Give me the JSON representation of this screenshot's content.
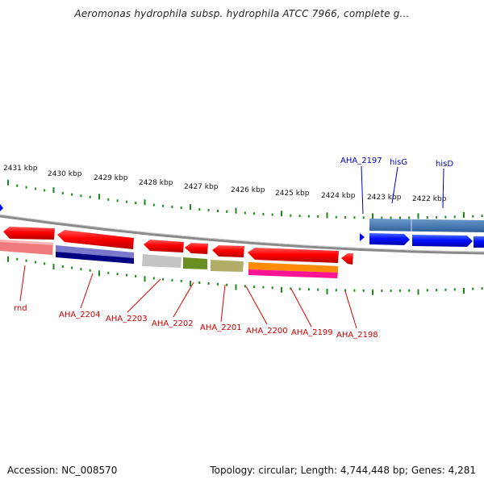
{
  "title": "Aeromonas hydrophila subsp. hydrophila ATCC 7966, complete g...",
  "accession": "Accession: NC_008570",
  "topology": "Topology: circular; Length: 4,744,448 bp; Genes: 4,281",
  "ruler": {
    "labels": [
      "2431 kbp",
      "2430 kbp",
      "2429 kbp",
      "2428 kbp",
      "2427 kbp",
      "2426 kbp",
      "2425 kbp",
      "2424 kbp",
      "2423 kbp",
      "2422 kbp"
    ]
  },
  "genes": [
    {
      "id": "rnd",
      "strand": "minus",
      "color": "red",
      "rna": "#f08080"
    },
    {
      "id": "AHA_2204",
      "strand": "minus",
      "color": "red",
      "rna": "#7a7ad0",
      "rna2": "#000080"
    },
    {
      "id": "AHA_2203",
      "strand": "minus",
      "color": "red",
      "rna": "#c8c8c8"
    },
    {
      "id": "AHA_2202",
      "strand": "minus",
      "color": "red",
      "rna": "#6b8e23"
    },
    {
      "id": "AHA_2201",
      "strand": "minus",
      "color": "red",
      "rna": "#b8b070"
    },
    {
      "id": "AHA_2200",
      "strand": "minus",
      "color": "red",
      "rna": "#ff8c00",
      "rna2": "#ff1493"
    },
    {
      "id": "AHA_2199",
      "strand": "minus",
      "color": "red"
    },
    {
      "id": "AHA_2198",
      "strand": "minus",
      "color": "red"
    },
    {
      "id": "AHA_2197",
      "strand": "plus",
      "color": "blue"
    },
    {
      "id": "hisG",
      "strand": "plus",
      "color": "blue"
    },
    {
      "id": "hisD",
      "strand": "plus",
      "color": "blue"
    }
  ],
  "colors": {
    "minus_strand": "#ff0000",
    "plus_strand": "#0000ff",
    "backbone": "#888888",
    "tick": "#1a8a1a"
  }
}
